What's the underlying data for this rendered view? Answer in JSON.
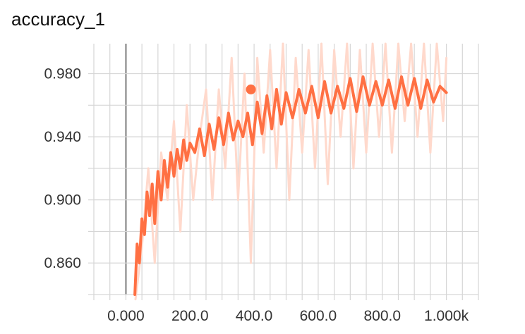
{
  "chart_data": {
    "type": "line",
    "title": "accuracy_1",
    "xlabel": "",
    "ylabel": "",
    "x_ticks": [
      "0.000",
      "200.0",
      "400.0",
      "600.0",
      "800.0",
      "1.000k"
    ],
    "y_ticks": [
      "0.860",
      "0.900",
      "0.940",
      "0.980"
    ],
    "xlim": [
      -100,
      1100
    ],
    "ylim": [
      0.84,
      0.999
    ],
    "grid": true,
    "colors": {
      "smoothed": "#ff7043",
      "raw": "#ffd9cc",
      "axis": "#999999",
      "grid": "#d6d6d6"
    },
    "marker": {
      "x": 390,
      "y": 0.97
    },
    "series": [
      {
        "style": "raw",
        "x": [
          30,
          50,
          70,
          90,
          110,
          130,
          150,
          170,
          190,
          210,
          230,
          250,
          270,
          290,
          310,
          330,
          350,
          370,
          390,
          410,
          430,
          450,
          470,
          490,
          510,
          530,
          550,
          570,
          590,
          610,
          630,
          650,
          670,
          690,
          710,
          730,
          750,
          770,
          790,
          810,
          830,
          850,
          870,
          890,
          910,
          930,
          950,
          970,
          990,
          1000
        ],
        "y": [
          0.835,
          0.87,
          0.92,
          0.86,
          0.93,
          0.9,
          0.95,
          0.88,
          0.96,
          0.9,
          0.94,
          0.97,
          0.9,
          0.97,
          0.92,
          0.99,
          0.9,
          0.98,
          0.86,
          0.99,
          0.93,
          0.995,
          0.92,
          0.999,
          0.9,
          0.99,
          0.93,
          0.995,
          0.92,
          0.999,
          0.91,
          0.995,
          0.94,
          0.999,
          0.92,
          0.995,
          0.93,
          0.999,
          0.94,
          0.999,
          0.93,
          0.999,
          0.95,
          0.999,
          0.94,
          0.999,
          0.93,
          0.999,
          0.95,
          0.99
        ]
      },
      {
        "style": "smoothed",
        "x": [
          28,
          35,
          42,
          50,
          58,
          66,
          74,
          82,
          90,
          100,
          110,
          120,
          130,
          140,
          150,
          160,
          170,
          180,
          190,
          200,
          215,
          230,
          245,
          260,
          275,
          290,
          305,
          320,
          335,
          350,
          365,
          380,
          395,
          410,
          425,
          440,
          455,
          470,
          485,
          500,
          520,
          540,
          560,
          580,
          600,
          620,
          640,
          660,
          680,
          700,
          720,
          740,
          760,
          780,
          800,
          820,
          840,
          860,
          880,
          900,
          920,
          940,
          960,
          980,
          1000
        ],
        "y": [
          0.84,
          0.872,
          0.86,
          0.888,
          0.878,
          0.905,
          0.89,
          0.91,
          0.885,
          0.918,
          0.9,
          0.925,
          0.908,
          0.93,
          0.915,
          0.932,
          0.92,
          0.938,
          0.925,
          0.936,
          0.93,
          0.945,
          0.928,
          0.948,
          0.932,
          0.952,
          0.935,
          0.955,
          0.938,
          0.95,
          0.94,
          0.955,
          0.935,
          0.962,
          0.942,
          0.966,
          0.945,
          0.97,
          0.948,
          0.968,
          0.952,
          0.97,
          0.955,
          0.972,
          0.952,
          0.975,
          0.955,
          0.972,
          0.958,
          0.977,
          0.956,
          0.978,
          0.96,
          0.975,
          0.96,
          0.976,
          0.958,
          0.978,
          0.96,
          0.977,
          0.958,
          0.976,
          0.962,
          0.972,
          0.968
        ]
      }
    ]
  }
}
